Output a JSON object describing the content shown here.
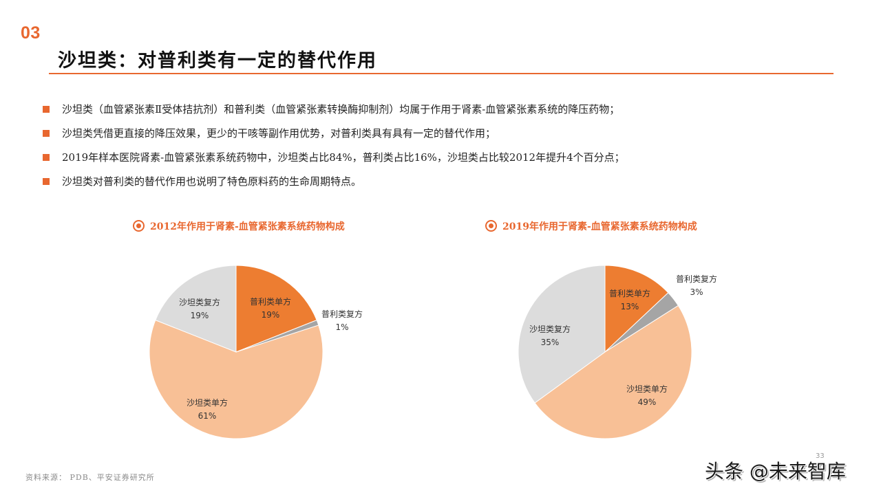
{
  "header": {
    "section_number": "03",
    "title": "沙坦类：对普利类有一定的替代作用"
  },
  "bullets": [
    "沙坦类（血管紧张素Ⅱ受体拮抗剂）和普利类（血管紧张素转换酶抑制剂）均属于作用于肾素-血管紧张素系统的降压药物；",
    "沙坦类凭借更直接的降压效果，更少的干咳等副作用优势，对普利类具有具有一定的替代作用；",
    "2019年样本医院肾素-血管紧张素系统药物中，沙坦类占比84%，普利类占比16%，沙坦类占比较2012年提升4个百分点；",
    "沙坦类对普利类的替代作用也说明了特色原料药的生命周期特点。"
  ],
  "colors": {
    "accent": "#E8672F",
    "puli_single": "#ED7D31",
    "puli_compound": "#A5A5A5",
    "shatan_single": "#F8C096",
    "shatan_compound": "#DCDCDC"
  },
  "chart_data": [
    {
      "type": "pie",
      "title": "2012年作用于肾素-血管紧张素系统药物构成",
      "categories": [
        "普利类单方",
        "普利类复方",
        "沙坦类单方",
        "沙坦类复方"
      ],
      "values": [
        19,
        1,
        61,
        19
      ],
      "labels": [
        {
          "name": "普利类单方",
          "value": "19%"
        },
        {
          "name": "普利类复方",
          "value": "1%"
        },
        {
          "name": "沙坦类单方",
          "value": "61%"
        },
        {
          "name": "沙坦类复方",
          "value": "19%"
        }
      ],
      "start_angle": "12 o'clock, clockwise",
      "legend": "none (data labels on slices)"
    },
    {
      "type": "pie",
      "title": "2019年作用于肾素-血管紧张素系统药物构成",
      "categories": [
        "普利类单方",
        "普利类复方",
        "沙坦类单方",
        "沙坦类复方"
      ],
      "values": [
        13,
        3,
        49,
        35
      ],
      "labels": [
        {
          "name": "普利类单方",
          "value": "13%"
        },
        {
          "name": "普利类复方",
          "value": "3%"
        },
        {
          "name": "沙坦类单方",
          "value": "49%"
        },
        {
          "name": "沙坦类复方",
          "value": "35%"
        }
      ],
      "start_angle": "12 o'clock, clockwise",
      "legend": "none (data labels on slices)"
    }
  ],
  "footer": {
    "source": "资料来源： PDB、平安证券研究所",
    "page_number": "33",
    "watermark": "头条 @未来智库"
  }
}
